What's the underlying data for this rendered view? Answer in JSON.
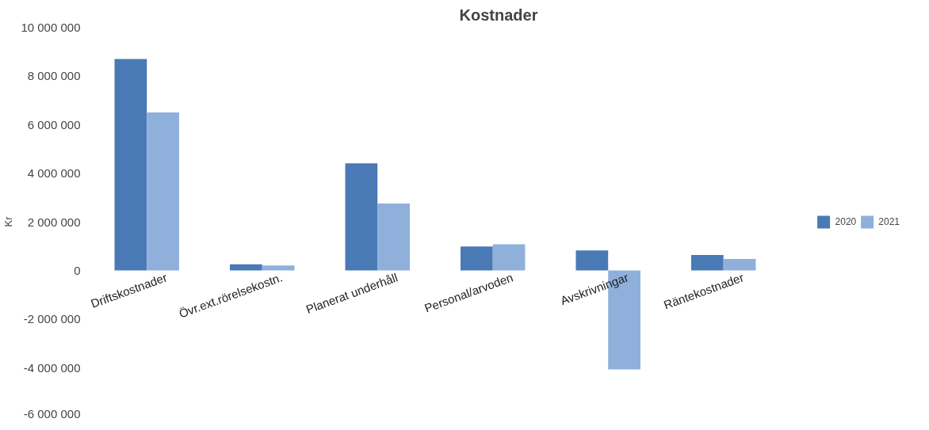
{
  "chart_data": {
    "type": "bar",
    "title": "Kostnader",
    "ylabel": "Kr",
    "categories": [
      "Driftskostnader",
      "Övr.ext.rörelsekostn.",
      "Planerat underhåll",
      "Personal/arvoden",
      "Avskrivningar",
      "Räntekostnader"
    ],
    "series": [
      {
        "name": "2020",
        "color": "#4a7ab5",
        "values": [
          8700000,
          250000,
          4400000,
          980000,
          820000,
          630000
        ]
      },
      {
        "name": "2021",
        "color": "#8fb0db",
        "values": [
          6500000,
          200000,
          2750000,
          1070000,
          -4080000,
          470000
        ]
      }
    ],
    "ylim": [
      -6000000,
      10000000
    ],
    "yticks": [
      {
        "value": -6000000,
        "label": "-6 000 000"
      },
      {
        "value": -4000000,
        "label": "-4 000 000"
      },
      {
        "value": -2000000,
        "label": "-2 000 000"
      },
      {
        "value": 0,
        "label": "0"
      },
      {
        "value": 2000000,
        "label": "2 000 000"
      },
      {
        "value": 4000000,
        "label": "4 000 000"
      },
      {
        "value": 6000000,
        "label": "6 000 000"
      },
      {
        "value": 8000000,
        "label": "8 000 000"
      },
      {
        "value": 10000000,
        "label": "10 000 000"
      }
    ],
    "grid": false,
    "legend": "right"
  }
}
